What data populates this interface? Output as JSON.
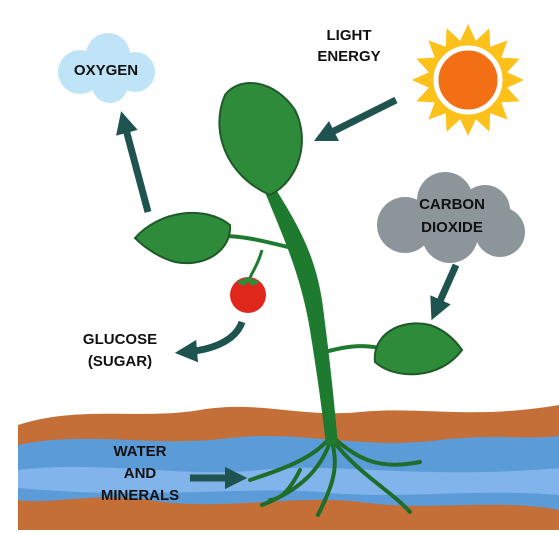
{
  "labels": {
    "oxygen": {
      "lines": [
        "OXYGEN"
      ]
    },
    "light_energy": {
      "lines": [
        "LIGHT",
        "ENERGY"
      ]
    },
    "carbon_dioxide": {
      "lines": [
        "CARBON",
        "DIOXIDE"
      ]
    },
    "glucose": {
      "lines": [
        "GLUCOSE",
        "(SUGAR)"
      ]
    },
    "water_minerals": {
      "lines": [
        "WATER",
        "AND",
        "MINERALS"
      ]
    }
  }
}
